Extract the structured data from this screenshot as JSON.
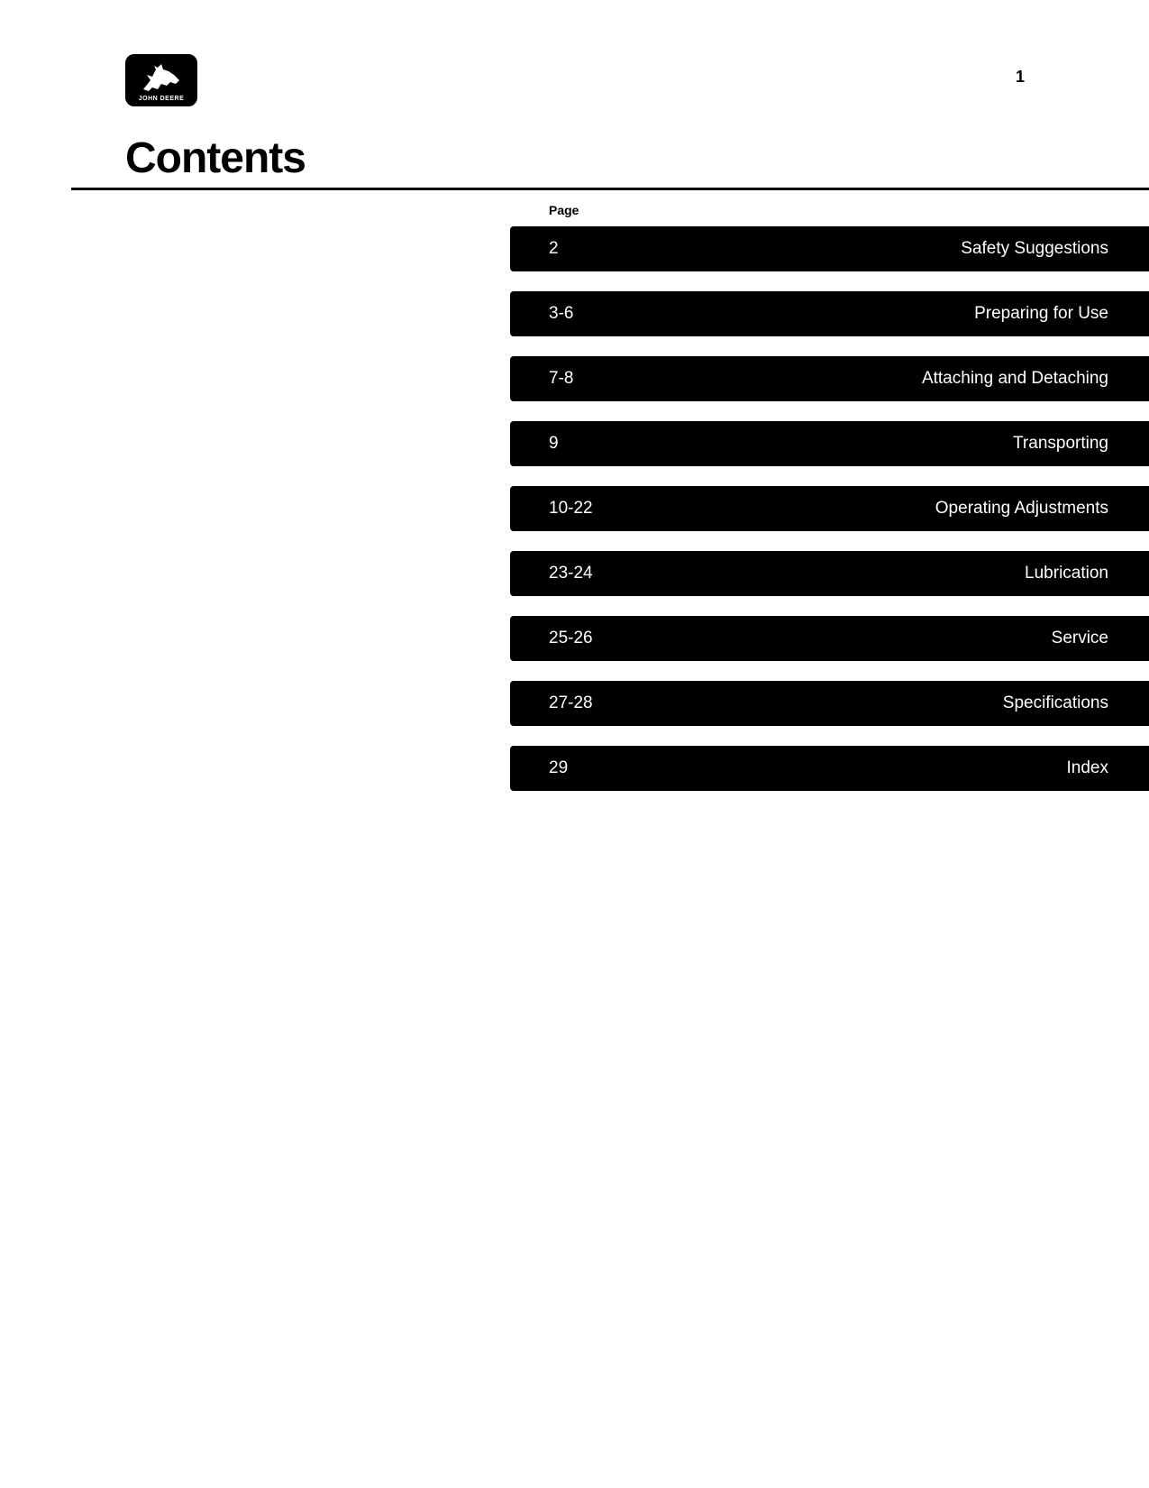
{
  "brand_text": "JOHN DEERE",
  "page_number": "1",
  "title": "Contents",
  "toc_header": "Page",
  "toc": [
    {
      "page": "2",
      "title": "Safety Suggestions"
    },
    {
      "page": "3-6",
      "title": "Preparing for Use"
    },
    {
      "page": "7-8",
      "title": "Attaching and Detaching"
    },
    {
      "page": "9",
      "title": "Transporting"
    },
    {
      "page": "10-22",
      "title": "Operating Adjustments"
    },
    {
      "page": "23-24",
      "title": "Lubrication"
    },
    {
      "page": "25-26",
      "title": "Service"
    },
    {
      "page": "27-28",
      "title": "Specifications"
    },
    {
      "page": "29",
      "title": "Index"
    }
  ],
  "colors": {
    "background": "#ffffff",
    "text": "#000000",
    "tab_bg": "#000000",
    "tab_text": "#ffffff"
  }
}
